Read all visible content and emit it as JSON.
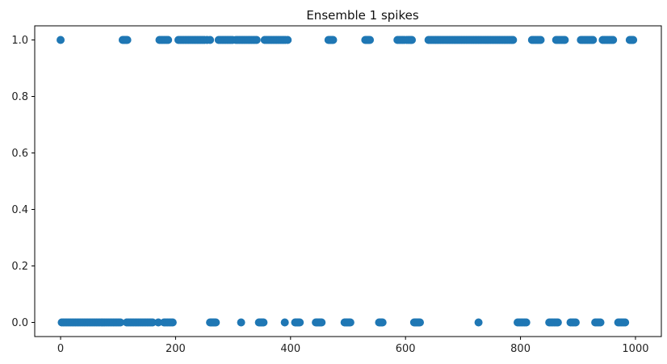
{
  "chart_data": {
    "type": "scatter",
    "title": "Ensemble 1 spikes",
    "xlabel": "",
    "ylabel": "",
    "xlim": [
      -45,
      1045
    ],
    "ylim": [
      -0.05,
      1.05
    ],
    "xticks": [
      0,
      200,
      400,
      600,
      800,
      1000
    ],
    "xtick_labels": [
      "0",
      "200",
      "400",
      "600",
      "800",
      "1000"
    ],
    "yticks": [
      0.0,
      0.2,
      0.4,
      0.6,
      0.8,
      1.0
    ],
    "ytick_labels": [
      "0.0",
      "0.2",
      "0.4",
      "0.6",
      "0.8",
      "1.0"
    ],
    "grid": false,
    "legend": "none",
    "marker_color": "#1f77b4",
    "series": [
      {
        "values_y1_x": [
          0,
          108,
          110,
          112,
          114,
          116,
          172,
          175,
          178,
          181,
          184,
          187,
          205,
          208,
          211,
          214,
          217,
          220,
          223,
          226,
          229,
          232,
          235,
          238,
          241,
          244,
          247,
          250,
          255,
          260,
          275,
          278,
          281,
          284,
          287,
          290,
          293,
          296,
          299,
          305,
          308,
          311,
          314,
          317,
          320,
          323,
          326,
          329,
          332,
          335,
          338,
          341,
          355,
          358,
          361,
          364,
          367,
          370,
          373,
          376,
          379,
          382,
          385,
          388,
          391,
          395,
          466,
          468,
          470,
          472,
          474,
          530,
          532,
          534,
          536,
          538,
          586,
          589,
          592,
          595,
          598,
          602,
          605,
          608,
          611,
          640,
          643,
          646,
          649,
          652,
          655,
          658,
          661,
          664,
          667,
          670,
          673,
          676,
          679,
          682,
          685,
          688,
          691,
          694,
          697,
          700,
          703,
          706,
          709,
          712,
          715,
          718,
          721,
          724,
          727,
          730,
          733,
          736,
          739,
          742,
          745,
          748,
          751,
          754,
          757,
          760,
          763,
          766,
          769,
          772,
          775,
          778,
          781,
          784,
          787,
          820,
          823,
          826,
          829,
          832,
          835,
          862,
          865,
          868,
          871,
          874,
          877,
          905,
          908,
          911,
          914,
          917,
          920,
          923,
          926,
          943,
          946,
          949,
          952,
          955,
          958,
          961,
          990,
          992,
          994,
          996
        ],
        "values_y0_x": [
          2,
          5,
          8,
          11,
          14,
          17,
          20,
          23,
          26,
          29,
          32,
          35,
          38,
          41,
          44,
          47,
          50,
          53,
          56,
          59,
          62,
          65,
          68,
          71,
          74,
          77,
          80,
          83,
          86,
          89,
          92,
          95,
          98,
          101,
          104,
          115,
          118,
          121,
          124,
          127,
          130,
          133,
          136,
          139,
          142,
          145,
          148,
          151,
          154,
          157,
          160,
          170,
          180,
          183,
          186,
          189,
          192,
          195,
          260,
          262,
          264,
          266,
          268,
          270,
          314,
          345,
          347,
          349,
          351,
          353,
          390,
          408,
          410,
          412,
          414,
          416,
          444,
          446,
          448,
          450,
          452,
          454,
          494,
          496,
          498,
          500,
          502,
          504,
          554,
          556,
          558,
          560,
          615,
          617,
          619,
          621,
          623,
          625,
          727,
          795,
          798,
          801,
          804,
          807,
          810,
          850,
          853,
          856,
          859,
          862,
          865,
          887,
          890,
          893,
          896,
          930,
          933,
          936,
          939,
          970,
          973,
          976,
          979,
          982
        ]
      }
    ]
  }
}
